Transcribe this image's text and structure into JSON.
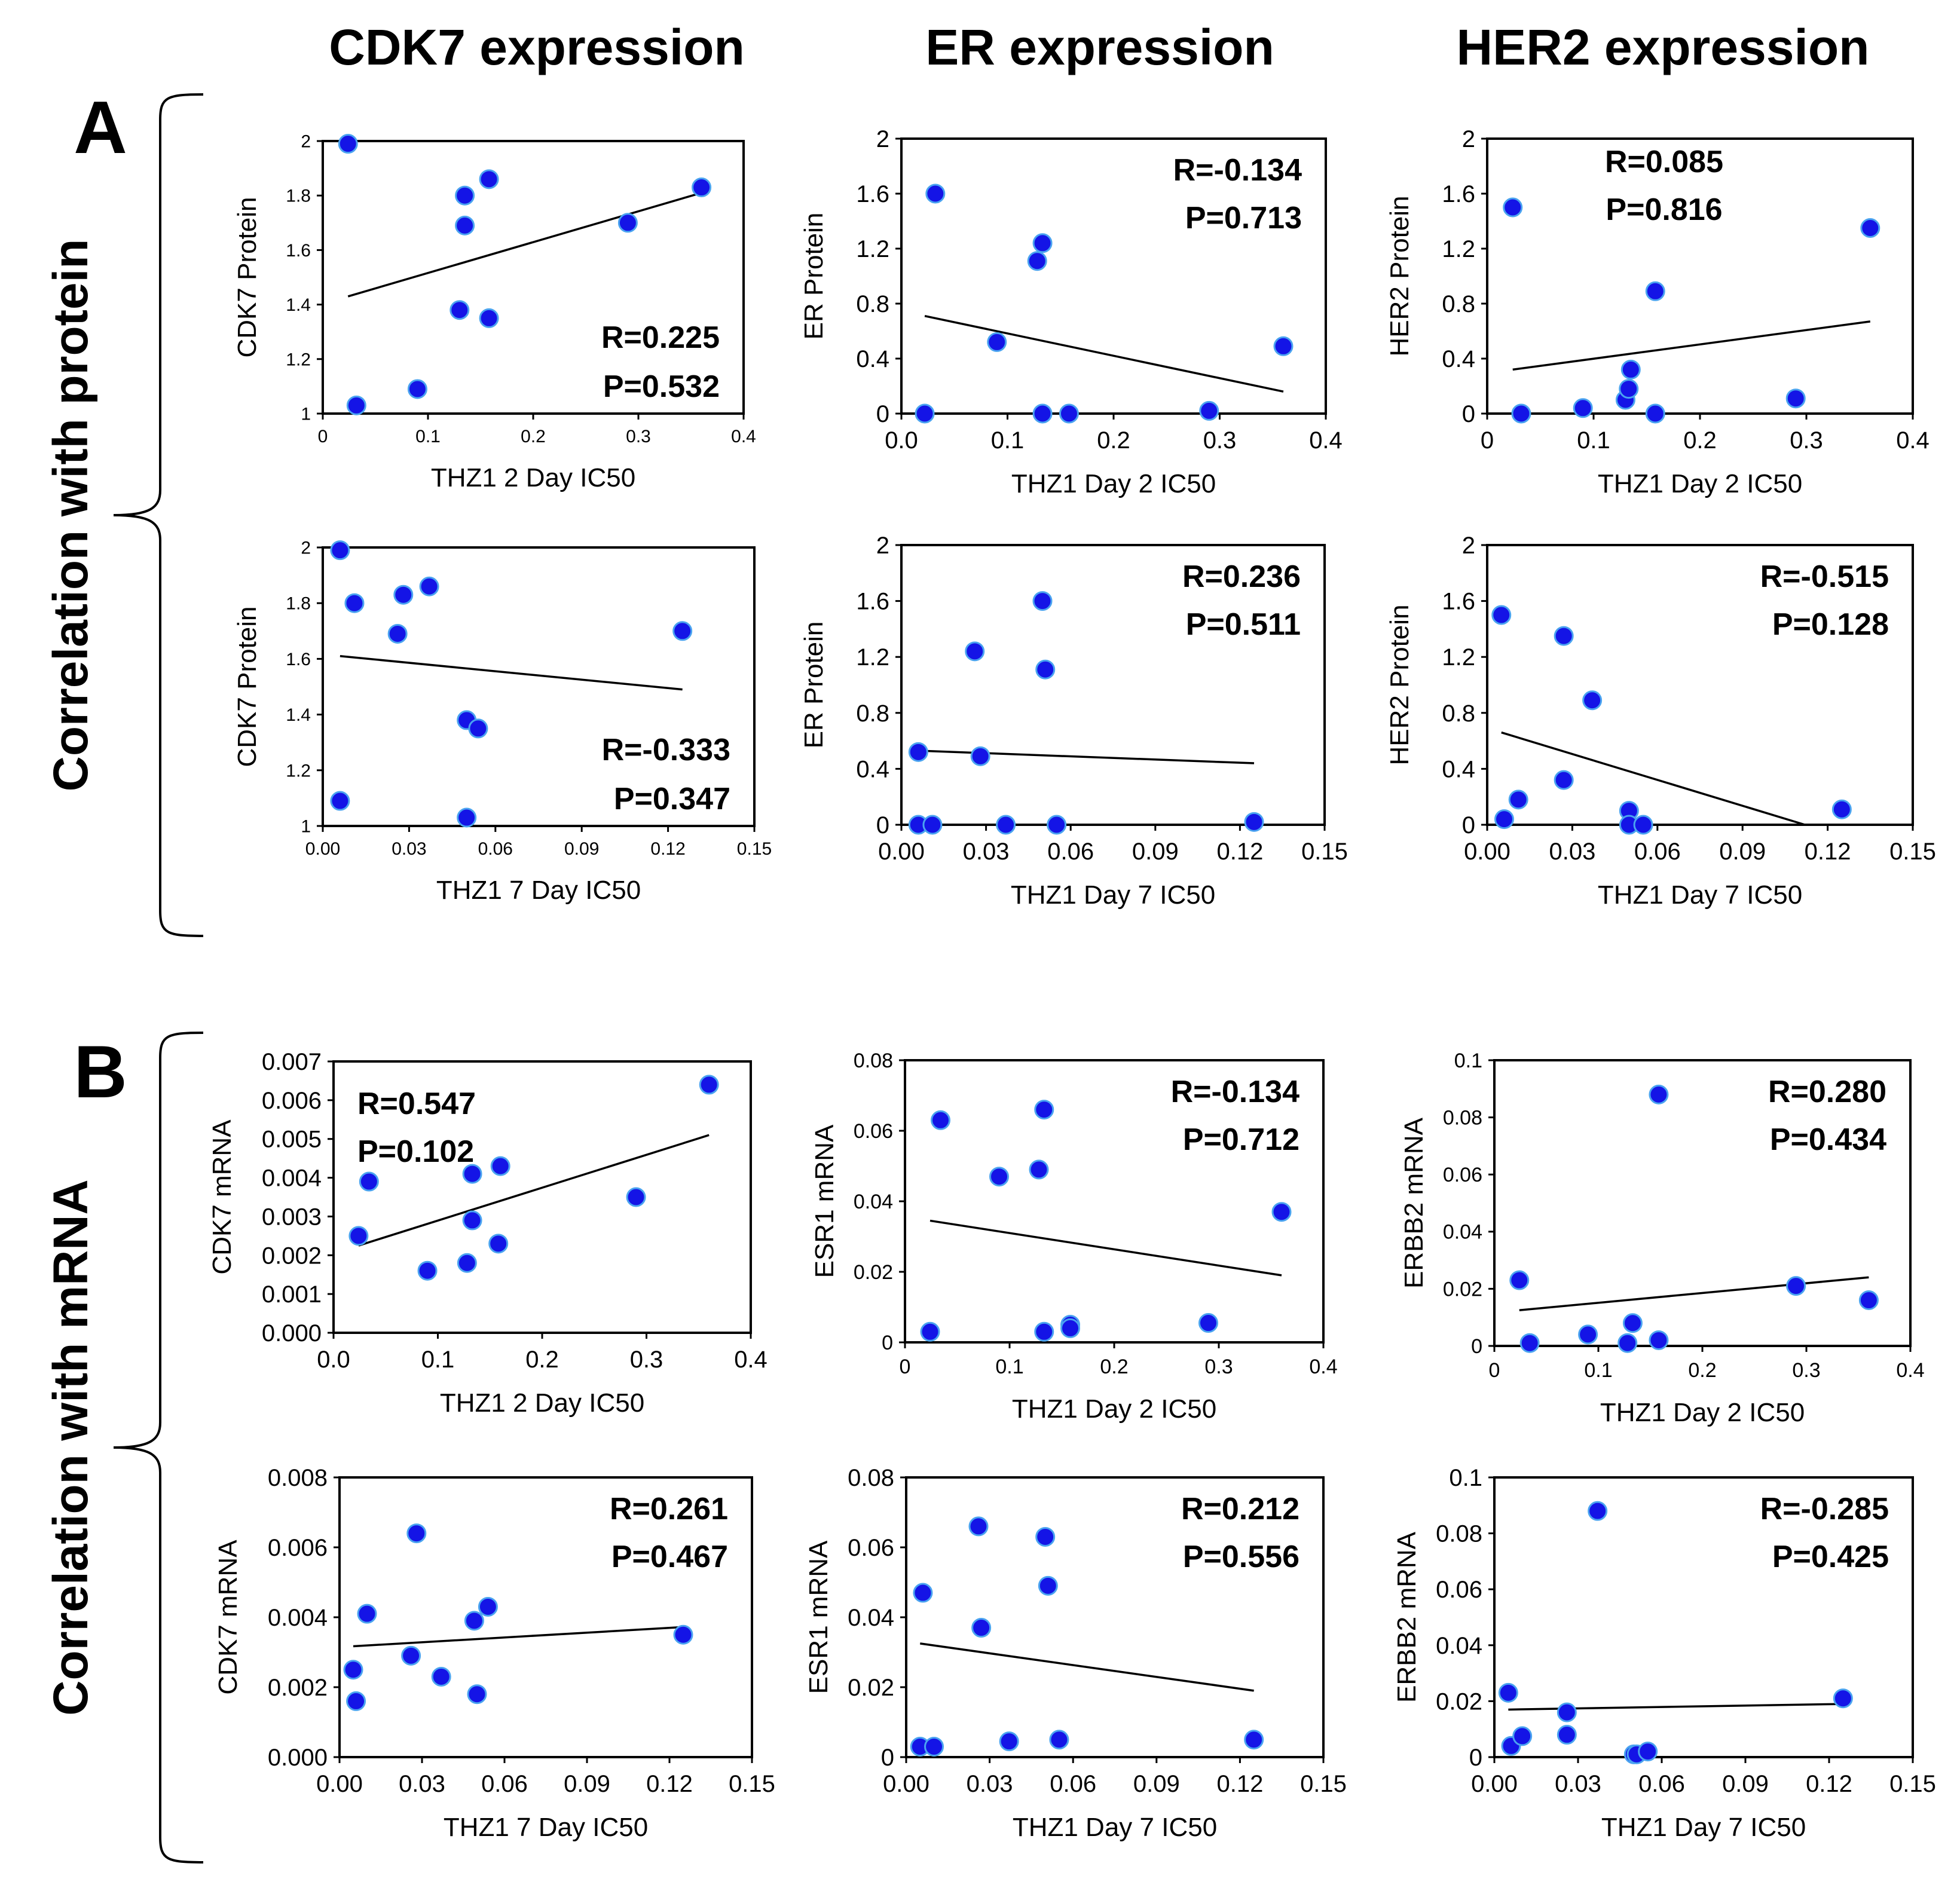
{
  "figure": {
    "column_titles": [
      "CDK7 expression",
      "ER expression",
      "HER2 expression"
    ],
    "panel_a": {
      "letter": "A",
      "row_label": "Correlation with protein"
    },
    "panel_b": {
      "letter": "B",
      "row_label": "Correlation with mRNA"
    }
  },
  "colors": {
    "point": "#1414e6",
    "point_edge": "#4aa3f0",
    "line": "#000000",
    "text": "#000000"
  },
  "chart_data": [
    {
      "type": "scatter",
      "title": "CDK7 expression",
      "xlabel": "THZ1 2 Day IC50",
      "ylabel": "CDK7 Protein",
      "xlim": [
        0,
        0.4
      ],
      "ylim": [
        1,
        2
      ],
      "xticks": [
        "0",
        "0.1",
        "0.2",
        "0.3",
        "0.4"
      ],
      "xtick_values": [
        0,
        0.1,
        0.2,
        0.3,
        0.4
      ],
      "yticks": [
        "1",
        "1.2",
        "1.4",
        "1.6",
        "1.8",
        "2"
      ],
      "ytick_values": [
        1,
        1.2,
        1.4,
        1.6,
        1.8,
        2
      ],
      "points": [
        [
          0.024,
          1.99
        ],
        [
          0.032,
          1.03
        ],
        [
          0.09,
          1.09
        ],
        [
          0.13,
          1.38
        ],
        [
          0.135,
          1.8
        ],
        [
          0.135,
          1.69
        ],
        [
          0.158,
          1.86
        ],
        [
          0.158,
          1.35
        ],
        [
          0.29,
          1.7
        ],
        [
          0.36,
          1.83
        ]
      ],
      "trendline": [
        [
          0.024,
          1.43
        ],
        [
          0.36,
          1.81
        ]
      ],
      "r_text": "R=0.225",
      "p_text": "P=0.532",
      "stat_position": "bottom-right"
    },
    {
      "type": "scatter",
      "title": "ER expression",
      "xlabel": "THZ1 Day 2 IC50",
      "ylabel": "ER Protein",
      "xlim": [
        0,
        0.4
      ],
      "ylim": [
        0,
        2
      ],
      "xticks": [
        "0.0",
        "0.1",
        "0.2",
        "0.3",
        "0.4"
      ],
      "xtick_values": [
        0,
        0.1,
        0.2,
        0.3,
        0.4
      ],
      "yticks": [
        "0",
        "0.4",
        "0.8",
        "1.2",
        "1.6",
        "2"
      ],
      "ytick_values": [
        0,
        0.4,
        0.8,
        1.2,
        1.6,
        2
      ],
      "points": [
        [
          0.022,
          0.0
        ],
        [
          0.032,
          1.6
        ],
        [
          0.09,
          0.52
        ],
        [
          0.128,
          1.11
        ],
        [
          0.133,
          1.24
        ],
        [
          0.133,
          0.0
        ],
        [
          0.158,
          0.0
        ],
        [
          0.29,
          0.02
        ],
        [
          0.36,
          0.49
        ]
      ],
      "trendline": [
        [
          0.022,
          0.71
        ],
        [
          0.36,
          0.16
        ]
      ],
      "r_text": "R=-0.134",
      "p_text": "P=0.713",
      "stat_position": "top-right"
    },
    {
      "type": "scatter",
      "title": "HER2 expression",
      "xlabel": "THZ1 Day 2 IC50",
      "ylabel": "HER2 Protein",
      "xlim": [
        0,
        0.4
      ],
      "ylim": [
        0,
        2
      ],
      "xticks": [
        "0",
        "0.1",
        "0.2",
        "0.3",
        "0.4"
      ],
      "xtick_values": [
        0,
        0.1,
        0.2,
        0.3,
        0.4
      ],
      "yticks": [
        "0",
        "0.4",
        "0.8",
        "1.2",
        "1.6",
        "2"
      ],
      "ytick_values": [
        0,
        0.4,
        0.8,
        1.2,
        1.6,
        2
      ],
      "points": [
        [
          0.024,
          1.5
        ],
        [
          0.032,
          0.0
        ],
        [
          0.09,
          0.04
        ],
        [
          0.13,
          0.1
        ],
        [
          0.133,
          0.18
        ],
        [
          0.135,
          0.32
        ],
        [
          0.158,
          0.89
        ],
        [
          0.158,
          0.0
        ],
        [
          0.29,
          0.11
        ],
        [
          0.36,
          1.35
        ]
      ],
      "trendline": [
        [
          0.024,
          0.32
        ],
        [
          0.36,
          0.67
        ]
      ],
      "r_text": "R=0.085",
      "p_text": "P=0.816",
      "stat_position": "top-center"
    },
    {
      "type": "scatter",
      "title": "CDK7 expression",
      "xlabel": "THZ1 7 Day IC50",
      "ylabel": "CDK7 Protein",
      "xlim": [
        0,
        0.15
      ],
      "ylim": [
        1,
        2
      ],
      "xticks": [
        "0.00",
        "0.03",
        "0.06",
        "0.09",
        "0.12",
        "0.15"
      ],
      "xtick_values": [
        0,
        0.03,
        0.06,
        0.09,
        0.12,
        0.15
      ],
      "yticks": [
        "1",
        "1.2",
        "1.4",
        "1.6",
        "1.8",
        "2"
      ],
      "ytick_values": [
        1,
        1.2,
        1.4,
        1.6,
        1.8,
        2
      ],
      "points": [
        [
          0.006,
          1.99
        ],
        [
          0.006,
          1.09
        ],
        [
          0.011,
          1.8
        ],
        [
          0.026,
          1.69
        ],
        [
          0.028,
          1.83
        ],
        [
          0.037,
          1.86
        ],
        [
          0.05,
          1.38
        ],
        [
          0.054,
          1.35
        ],
        [
          0.05,
          1.03
        ],
        [
          0.125,
          1.7
        ]
      ],
      "trendline": [
        [
          0.006,
          1.61
        ],
        [
          0.125,
          1.49
        ]
      ],
      "r_text": "R=-0.333",
      "p_text": "P=0.347",
      "stat_position": "bottom-right"
    },
    {
      "type": "scatter",
      "title": "ER expression",
      "xlabel": "THZ1 Day 7 IC50",
      "ylabel": "ER Protein",
      "xlim": [
        0,
        0.15
      ],
      "ylim": [
        0,
        2
      ],
      "xticks": [
        "0.00",
        "0.03",
        "0.06",
        "0.09",
        "0.12",
        "0.15"
      ],
      "xtick_values": [
        0,
        0.03,
        0.06,
        0.09,
        0.12,
        0.15
      ],
      "yticks": [
        "0",
        "0.4",
        "0.8",
        "1.2",
        "1.6",
        "2"
      ],
      "ytick_values": [
        0,
        0.4,
        0.8,
        1.2,
        1.6,
        2
      ],
      "points": [
        [
          0.006,
          0.52
        ],
        [
          0.006,
          0.0
        ],
        [
          0.011,
          0.0
        ],
        [
          0.026,
          1.24
        ],
        [
          0.028,
          0.49
        ],
        [
          0.037,
          0.0
        ],
        [
          0.05,
          1.6
        ],
        [
          0.051,
          1.11
        ],
        [
          0.055,
          0.0
        ],
        [
          0.125,
          0.02
        ]
      ],
      "trendline": [
        [
          0.006,
          0.53
        ],
        [
          0.125,
          0.44
        ]
      ],
      "r_text": "R=0.236",
      "p_text": "P=0.511",
      "stat_position": "top-right"
    },
    {
      "type": "scatter",
      "title": "HER2 expression",
      "xlabel": "THZ1 Day 7 IC50",
      "ylabel": "HER2 Protein",
      "xlim": [
        0,
        0.15
      ],
      "ylim": [
        0,
        2
      ],
      "xticks": [
        "0.00",
        "0.03",
        "0.06",
        "0.09",
        "0.12",
        "0.15"
      ],
      "xtick_values": [
        0,
        0.03,
        0.06,
        0.09,
        0.12,
        0.15
      ],
      "yticks": [
        "0",
        "0.4",
        "0.8",
        "1.2",
        "1.6",
        "2"
      ],
      "ytick_values": [
        0,
        0.4,
        0.8,
        1.2,
        1.6,
        2
      ],
      "points": [
        [
          0.005,
          1.5
        ],
        [
          0.006,
          0.04
        ],
        [
          0.011,
          0.18
        ],
        [
          0.027,
          1.35
        ],
        [
          0.027,
          0.32
        ],
        [
          0.037,
          0.89
        ],
        [
          0.05,
          0.1
        ],
        [
          0.05,
          0.0
        ],
        [
          0.055,
          0.0
        ],
        [
          0.125,
          0.11
        ]
      ],
      "trendline": [
        [
          0.005,
          0.66
        ],
        [
          0.112,
          0.0
        ]
      ],
      "r_text": "R=-0.515",
      "p_text": "P=0.128",
      "stat_position": "top-right"
    },
    {
      "type": "scatter",
      "title": "CDK7 expression",
      "xlabel": "THZ1 2 Day IC50",
      "ylabel": "CDK7 mRNA",
      "xlim": [
        0,
        0.4
      ],
      "ylim": [
        0,
        0.007
      ],
      "xticks": [
        "0.0",
        "0.1",
        "0.2",
        "0.3",
        "0.4"
      ],
      "xtick_values": [
        0,
        0.1,
        0.2,
        0.3,
        0.4
      ],
      "yticks": [
        "0.000",
        "0.001",
        "0.002",
        "0.003",
        "0.004",
        "0.005",
        "0.006",
        "0.007"
      ],
      "ytick_values": [
        0,
        0.001,
        0.002,
        0.003,
        0.004,
        0.005,
        0.006,
        0.007
      ],
      "points": [
        [
          0.024,
          0.0025
        ],
        [
          0.034,
          0.0039
        ],
        [
          0.09,
          0.0016
        ],
        [
          0.128,
          0.0018
        ],
        [
          0.133,
          0.0029
        ],
        [
          0.133,
          0.0041
        ],
        [
          0.158,
          0.0023
        ],
        [
          0.16,
          0.0043
        ],
        [
          0.29,
          0.0035
        ],
        [
          0.36,
          0.0064
        ]
      ],
      "trendline": [
        [
          0.024,
          0.00225
        ],
        [
          0.36,
          0.0051
        ]
      ],
      "r_text": "R=0.547",
      "p_text": "P=0.102",
      "stat_position": "top-left"
    },
    {
      "type": "scatter",
      "title": "ER expression",
      "xlabel": "THZ1 Day 2 IC50",
      "ylabel": "ESR1 mRNA",
      "xlim": [
        0,
        0.4
      ],
      "ylim": [
        0,
        0.08
      ],
      "xticks": [
        "0",
        "0.1",
        "0.2",
        "0.3",
        "0.4"
      ],
      "xtick_values": [
        0,
        0.1,
        0.2,
        0.3,
        0.4
      ],
      "yticks": [
        "0",
        "0.02",
        "0.04",
        "0.06",
        "0.08"
      ],
      "ytick_values": [
        0,
        0.02,
        0.04,
        0.06,
        0.08
      ],
      "points": [
        [
          0.024,
          0.003
        ],
        [
          0.034,
          0.063
        ],
        [
          0.09,
          0.047
        ],
        [
          0.128,
          0.049
        ],
        [
          0.133,
          0.066
        ],
        [
          0.133,
          0.003
        ],
        [
          0.158,
          0.005
        ],
        [
          0.158,
          0.004
        ],
        [
          0.29,
          0.0055
        ],
        [
          0.36,
          0.037
        ]
      ],
      "trendline": [
        [
          0.024,
          0.0345
        ],
        [
          0.36,
          0.019
        ]
      ],
      "r_text": "R=-0.134",
      "p_text": "P=0.712",
      "stat_position": "top-right"
    },
    {
      "type": "scatter",
      "title": "HER2 expression",
      "xlabel": "THZ1 Day 2 IC50",
      "ylabel": "ERBB2 mRNA",
      "xlim": [
        0,
        0.4
      ],
      "ylim": [
        0,
        0.1
      ],
      "xticks": [
        "0",
        "0.1",
        "0.2",
        "0.3",
        "0.4"
      ],
      "xtick_values": [
        0,
        0.1,
        0.2,
        0.3,
        0.4
      ],
      "yticks": [
        "0",
        "0.02",
        "0.04",
        "0.06",
        "0.08",
        "0.1"
      ],
      "ytick_values": [
        0,
        0.02,
        0.04,
        0.06,
        0.08,
        0.1
      ],
      "points": [
        [
          0.024,
          0.023
        ],
        [
          0.034,
          0.001
        ],
        [
          0.09,
          0.004
        ],
        [
          0.128,
          0.001
        ],
        [
          0.133,
          0.008
        ],
        [
          0.158,
          0.088
        ],
        [
          0.158,
          0.002
        ],
        [
          0.29,
          0.021
        ],
        [
          0.36,
          0.016
        ]
      ],
      "trendline": [
        [
          0.024,
          0.0125
        ],
        [
          0.36,
          0.024
        ]
      ],
      "r_text": "R=0.280",
      "p_text": "P=0.434",
      "stat_position": "top-right"
    },
    {
      "type": "scatter",
      "title": "CDK7 expression",
      "xlabel": "THZ1 7 Day IC50",
      "ylabel": "CDK7 mRNA",
      "xlim": [
        0,
        0.15
      ],
      "ylim": [
        0,
        0.008
      ],
      "xticks": [
        "0.00",
        "0.03",
        "0.06",
        "0.09",
        "0.12",
        "0.15"
      ],
      "xtick_values": [
        0,
        0.03,
        0.06,
        0.09,
        0.12,
        0.15
      ],
      "yticks": [
        "0.000",
        "0.002",
        "0.004",
        "0.006",
        "0.008"
      ],
      "ytick_values": [
        0,
        0.002,
        0.004,
        0.006,
        0.008
      ],
      "points": [
        [
          0.005,
          0.0025
        ],
        [
          0.006,
          0.0016
        ],
        [
          0.01,
          0.0041
        ],
        [
          0.026,
          0.0029
        ],
        [
          0.028,
          0.0064
        ],
        [
          0.037,
          0.0023
        ],
        [
          0.049,
          0.0039
        ],
        [
          0.05,
          0.0018
        ],
        [
          0.054,
          0.0043
        ],
        [
          0.125,
          0.0035
        ]
      ],
      "trendline": [
        [
          0.005,
          0.00317
        ],
        [
          0.125,
          0.00372
        ]
      ],
      "r_text": "R=0.261",
      "p_text": "P=0.467",
      "stat_position": "top-right"
    },
    {
      "type": "scatter",
      "title": "ER expression",
      "xlabel": "THZ1 Day 7 IC50",
      "ylabel": "ESR1 mRNA",
      "xlim": [
        0,
        0.15
      ],
      "ylim": [
        0,
        0.08
      ],
      "xticks": [
        "0.00",
        "0.03",
        "0.06",
        "0.09",
        "0.12",
        "0.15"
      ],
      "xtick_values": [
        0,
        0.03,
        0.06,
        0.09,
        0.12,
        0.15
      ],
      "yticks": [
        "0",
        "0.02",
        "0.04",
        "0.06",
        "0.08"
      ],
      "ytick_values": [
        0,
        0.02,
        0.04,
        0.06,
        0.08
      ],
      "points": [
        [
          0.005,
          0.003
        ],
        [
          0.006,
          0.047
        ],
        [
          0.01,
          0.003
        ],
        [
          0.026,
          0.066
        ],
        [
          0.027,
          0.037
        ],
        [
          0.037,
          0.0045
        ],
        [
          0.05,
          0.063
        ],
        [
          0.051,
          0.049
        ],
        [
          0.055,
          0.005
        ],
        [
          0.125,
          0.005
        ]
      ],
      "trendline": [
        [
          0.005,
          0.0325
        ],
        [
          0.125,
          0.019
        ]
      ],
      "r_text": "R=0.212",
      "p_text": "P=0.556",
      "stat_position": "top-right"
    },
    {
      "type": "scatter",
      "title": "HER2 expression",
      "xlabel": "THZ1 Day 7 IC50",
      "ylabel": "ERBB2 mRNA",
      "xlim": [
        0,
        0.15
      ],
      "ylim": [
        0,
        0.1
      ],
      "xticks": [
        "0.00",
        "0.03",
        "0.06",
        "0.09",
        "0.12",
        "0.15"
      ],
      "xtick_values": [
        0,
        0.03,
        0.06,
        0.09,
        0.12,
        0.15
      ],
      "yticks": [
        "0",
        "0.02",
        "0.04",
        "0.06",
        "0.08",
        "0.1"
      ],
      "ytick_values": [
        0,
        0.02,
        0.04,
        0.06,
        0.08,
        0.1
      ],
      "points": [
        [
          0.005,
          0.023
        ],
        [
          0.006,
          0.004
        ],
        [
          0.01,
          0.0075
        ],
        [
          0.026,
          0.016
        ],
        [
          0.026,
          0.008
        ],
        [
          0.037,
          0.088
        ],
        [
          0.05,
          0.001
        ],
        [
          0.051,
          0.001
        ],
        [
          0.055,
          0.002
        ],
        [
          0.125,
          0.021
        ]
      ],
      "trendline": [
        [
          0.005,
          0.017
        ],
        [
          0.125,
          0.019
        ]
      ],
      "r_text": "R=-0.285",
      "p_text": "P=0.425",
      "stat_position": "top-right"
    }
  ]
}
